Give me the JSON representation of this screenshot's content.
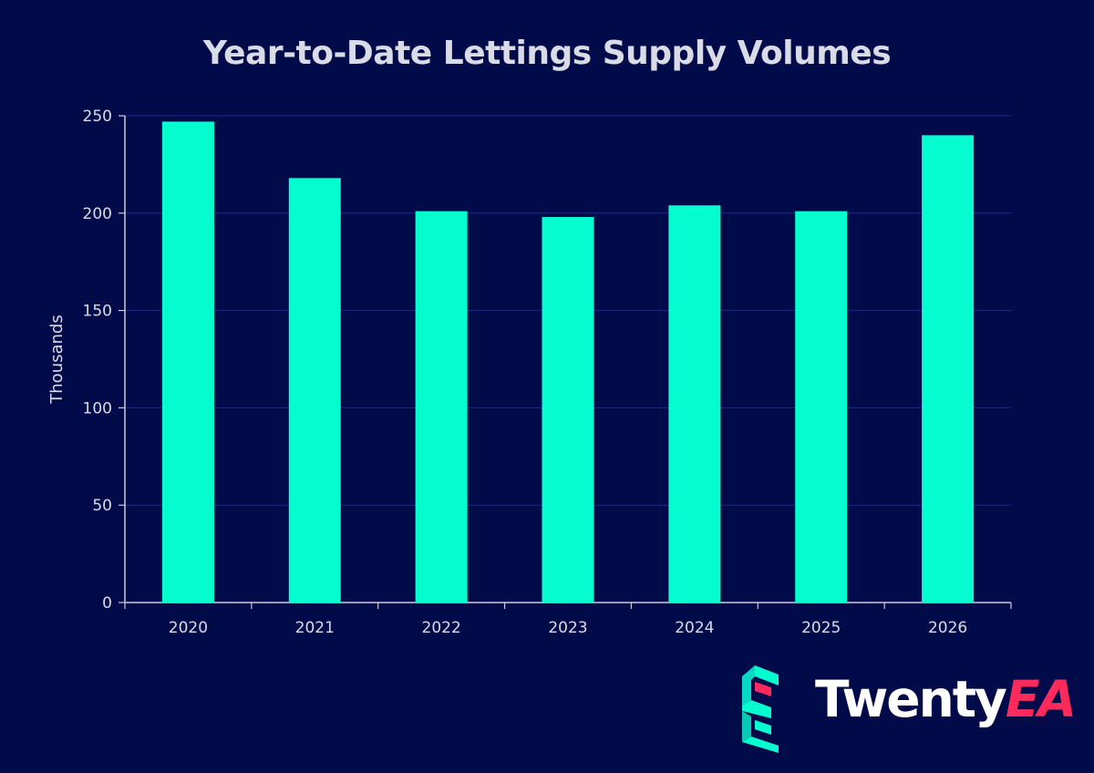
{
  "colors": {
    "background": "#020b4a",
    "bar": "#05fccf",
    "gridline": "#1c2a8a",
    "axis": "#c9cbe0",
    "text": "#d9dce6",
    "brand_accent": "#ff2a5c"
  },
  "chart_data": {
    "type": "bar",
    "title": "Year-to-Date Lettings Supply Volumes",
    "xlabel": "",
    "ylabel": "Thousands",
    "categories": [
      "2020",
      "2021",
      "2022",
      "2023",
      "2024",
      "2025",
      "2026"
    ],
    "values": [
      247,
      218,
      201,
      198,
      204,
      201,
      240
    ],
    "ylim": [
      0,
      250
    ],
    "yticks": [
      0,
      50,
      100,
      150,
      200,
      250
    ],
    "grid": true,
    "legend": "none"
  },
  "logo": {
    "icon": "twentyea-e-icon",
    "name_part1": "Twenty",
    "name_part2": "EA"
  }
}
